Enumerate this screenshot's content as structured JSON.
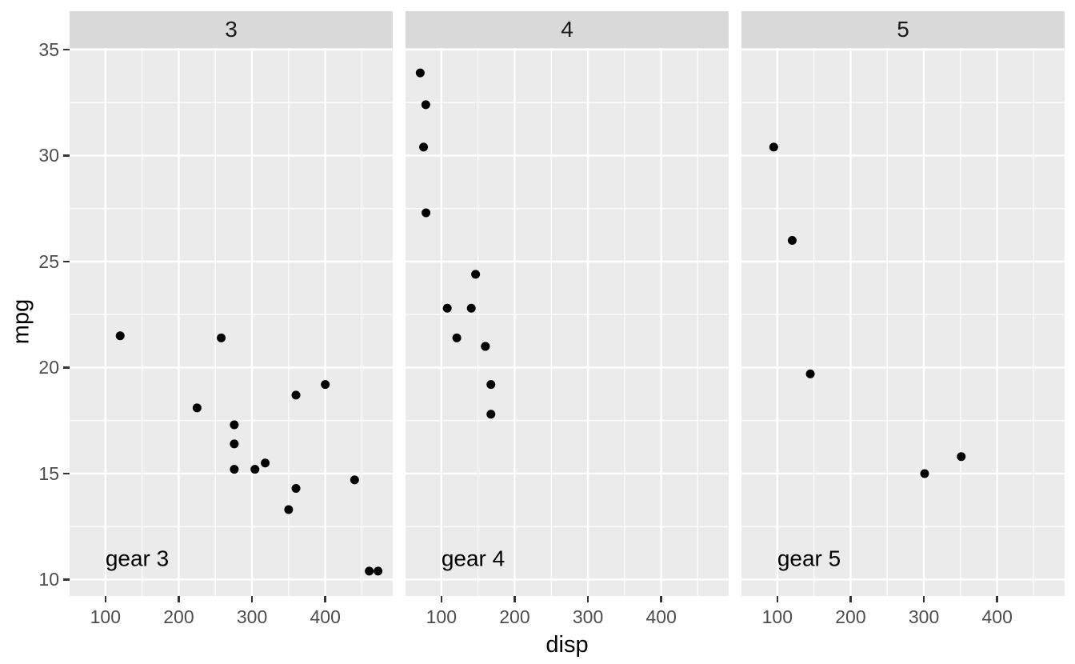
{
  "figure": {
    "xlabel": "disp",
    "ylabel": "mpg"
  },
  "chart_data": {
    "type": "scatter",
    "title": "",
    "xlabel": "disp",
    "ylabel": "mpg",
    "facet_variable": "gear",
    "xlim": [
      51.055,
      492.045
    ],
    "ylim": [
      9.225,
      35.075
    ],
    "x_ticks": [
      100,
      200,
      300,
      400
    ],
    "x_minor_ticks": [
      150,
      250,
      350,
      450
    ],
    "y_ticks": [
      10,
      15,
      20,
      25,
      30,
      35
    ],
    "y_minor_ticks": [
      12.5,
      17.5,
      22.5,
      27.5,
      32.5
    ],
    "grid": true,
    "legend": "none",
    "point_color": "#000000",
    "panel_bg": "#EBEBEB",
    "strip_bg": "#D9D9D9",
    "grid_color": "#FFFFFF",
    "facets": [
      {
        "label": "3",
        "annotation": "gear 3",
        "annotation_x": 100,
        "annotation_y": 11,
        "points": [
          [
            258,
            21.4
          ],
          [
            360,
            18.7
          ],
          [
            225,
            18.1
          ],
          [
            360,
            14.3
          ],
          [
            275.8,
            16.4
          ],
          [
            275.8,
            17.3
          ],
          [
            275.8,
            15.2
          ],
          [
            472,
            10.4
          ],
          [
            460,
            10.4
          ],
          [
            440,
            14.7
          ],
          [
            120.1,
            21.5
          ],
          [
            318,
            15.5
          ],
          [
            304,
            15.2
          ],
          [
            350,
            13.3
          ],
          [
            400,
            19.2
          ]
        ]
      },
      {
        "label": "4",
        "annotation": "gear 4",
        "annotation_x": 100,
        "annotation_y": 11,
        "points": [
          [
            160,
            21.0
          ],
          [
            160,
            21.0
          ],
          [
            108,
            22.8
          ],
          [
            146.7,
            24.4
          ],
          [
            140.8,
            22.8
          ],
          [
            167.6,
            19.2
          ],
          [
            167.6,
            17.8
          ],
          [
            78.7,
            32.4
          ],
          [
            75.7,
            30.4
          ],
          [
            71.1,
            33.9
          ],
          [
            79.0,
            27.3
          ],
          [
            121,
            21.4
          ]
        ]
      },
      {
        "label": "5",
        "annotation": "gear 5",
        "annotation_x": 100,
        "annotation_y": 11,
        "points": [
          [
            120.3,
            26.0
          ],
          [
            95.1,
            30.4
          ],
          [
            351,
            15.8
          ],
          [
            145,
            19.7
          ],
          [
            301,
            15.0
          ]
        ]
      }
    ]
  }
}
